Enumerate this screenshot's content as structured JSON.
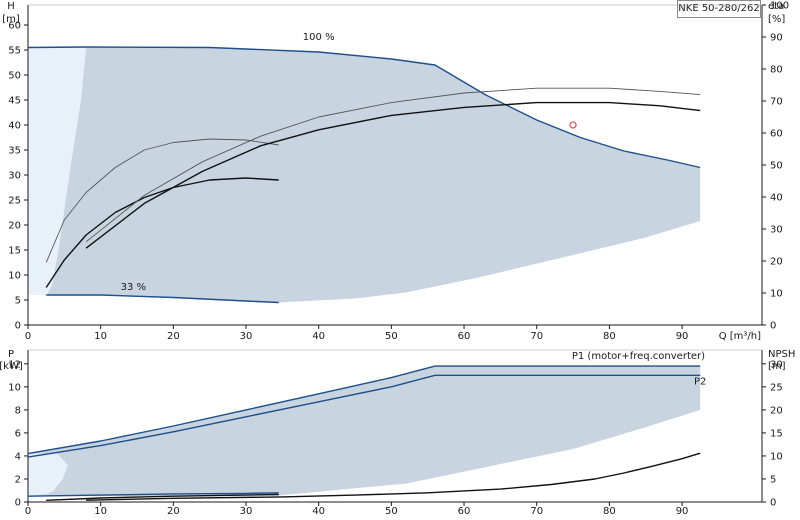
{
  "pump_model": "NKE 50-280/262",
  "colors": {
    "envelope_fill": "#c8d5e0",
    "low_speed_fill": "#e8f1fa",
    "curve_blue": "#1f4e8c",
    "curve_black": "#111111",
    "curve_gray": "#555555",
    "duty_marker": "#e05a5a",
    "axis": "#1a1a1a"
  },
  "chart_data": [
    {
      "type": "line",
      "panel": "head-efficiency",
      "x_axis": {
        "label": "Q [m³/h]",
        "ticks": [
          0,
          10,
          20,
          30,
          40,
          50,
          60,
          70,
          80,
          90
        ],
        "range": [
          0,
          101
        ]
      },
      "y_left": {
        "label_top": "H",
        "label_unit": "[m]",
        "ticks": [
          0,
          5,
          10,
          15,
          20,
          25,
          30,
          35,
          40,
          45,
          50,
          55,
          60
        ],
        "range": [
          0,
          64
        ]
      },
      "y_right": {
        "label_top": "eta",
        "label_unit": "[%]",
        "ticks": [
          0,
          10,
          20,
          30,
          40,
          50,
          60,
          70,
          80,
          90,
          100
        ],
        "range": [
          0,
          100
        ]
      },
      "annotations": [
        {
          "text": "100 %",
          "x": 40,
          "y": 57
        },
        {
          "text": "33 %",
          "x": 14.5,
          "y": 7
        }
      ],
      "envelope": {
        "upper": [
          [
            0,
            55.5
          ],
          [
            8,
            55.6
          ],
          [
            25,
            55.5
          ],
          [
            40,
            54.6
          ],
          [
            50,
            53.2
          ],
          [
            56,
            52
          ],
          [
            63,
            46
          ],
          [
            70,
            41
          ],
          [
            76,
            37.5
          ],
          [
            82,
            34.8
          ],
          [
            88,
            33
          ],
          [
            92.5,
            31.5
          ]
        ],
        "lower": [
          [
            92.5,
            20.8
          ],
          [
            85,
            17.5
          ],
          [
            75,
            14
          ],
          [
            62,
            9.5
          ],
          [
            52,
            6.5
          ],
          [
            45,
            5.3
          ],
          [
            34.5,
            4.5
          ],
          [
            20,
            5.5
          ],
          [
            10,
            6
          ],
          [
            0,
            6
          ]
        ]
      },
      "low_speed_region": [
        [
          0,
          55.5
        ],
        [
          8,
          55.6
        ],
        [
          7.3,
          45
        ],
        [
          6.2,
          35
        ],
        [
          5.2,
          25
        ],
        [
          4.2,
          15
        ],
        [
          3.3,
          8
        ],
        [
          2.6,
          6
        ],
        [
          0,
          6
        ]
      ],
      "series": [
        {
          "name": "",
          "role": "head-100",
          "color": "curve_blue",
          "points": [
            [
              0,
              55.5
            ],
            [
              8,
              55.6
            ],
            [
              25,
              55.5
            ],
            [
              40,
              54.6
            ],
            [
              50,
              53.2
            ],
            [
              56,
              52
            ],
            [
              63,
              46
            ],
            [
              70,
              41
            ],
            [
              76,
              37.5
            ],
            [
              82,
              34.8
            ],
            [
              88,
              33
            ],
            [
              92.5,
              31.5
            ]
          ]
        },
        {
          "name": "",
          "role": "head-33",
          "color": "curve_blue",
          "points": [
            [
              2.5,
              6
            ],
            [
              10,
              6
            ],
            [
              20,
              5.5
            ],
            [
              30,
              4.8
            ],
            [
              34.5,
              4.5
            ]
          ]
        },
        {
          "name": "",
          "role": "head-low-speed",
          "color": "curve_black",
          "points": [
            [
              2.5,
              7.5
            ],
            [
              5,
              13
            ],
            [
              8,
              18
            ],
            [
              12,
              22.5
            ],
            [
              16,
              25.5
            ],
            [
              20,
              27.5
            ],
            [
              25,
              29
            ],
            [
              30,
              29.4
            ],
            [
              34.5,
              29
            ]
          ]
        },
        {
          "name": "",
          "role": "head-low-speed-upper",
          "color": "curve_gray",
          "points": [
            [
              2.5,
              12.5
            ],
            [
              5,
              21
            ],
            [
              8,
              26.5
            ],
            [
              12,
              31.5
            ],
            [
              16,
              35
            ],
            [
              20,
              36.5
            ],
            [
              25,
              37.2
            ],
            [
              30,
              37
            ],
            [
              34.5,
              36
            ]
          ]
        },
        {
          "name": "",
          "role": "eta-100",
          "color": "curve_black",
          "axis": "right",
          "points": [
            [
              8,
              24
            ],
            [
              16,
              38
            ],
            [
              24,
              48
            ],
            [
              32,
              56
            ],
            [
              40,
              61
            ],
            [
              50,
              65.5
            ],
            [
              60,
              68
            ],
            [
              70,
              69.5
            ],
            [
              80,
              69.5
            ],
            [
              87,
              68.5
            ],
            [
              92.5,
              67
            ]
          ]
        },
        {
          "name": "",
          "role": "eta-upper",
          "color": "curve_gray",
          "axis": "right",
          "points": [
            [
              8,
              26
            ],
            [
              16,
              40.5
            ],
            [
              24,
              51
            ],
            [
              32,
              59
            ],
            [
              40,
              65
            ],
            [
              50,
              69.5
            ],
            [
              60,
              72.5
            ],
            [
              70,
              74
            ],
            [
              80,
              74
            ],
            [
              87,
              73
            ],
            [
              92.5,
              72
            ]
          ]
        }
      ],
      "duty_point": {
        "x": 75,
        "y": 40
      }
    },
    {
      "type": "line",
      "panel": "power-npsh",
      "x_axis": {
        "ticks": [
          0,
          10,
          20,
          30,
          40,
          50,
          60,
          70,
          80,
          90
        ],
        "range": [
          0,
          101
        ]
      },
      "y_left": {
        "label_top": "P",
        "label_unit": "[kW]",
        "ticks": [
          0,
          2,
          4,
          6,
          8,
          10,
          12
        ],
        "range": [
          0,
          13.2
        ]
      },
      "y_right": {
        "label_top": "NPSH",
        "label_unit": "[m]",
        "ticks": [
          0,
          5,
          10,
          15,
          20,
          25,
          30
        ],
        "range": [
          0,
          33
        ]
      },
      "annotations": [
        {
          "text": "P1 (motor+freq.converter)",
          "x": 84,
          "y": 12.4
        },
        {
          "text": "P2",
          "x": 92.5,
          "y": 10.2
        }
      ],
      "envelope": {
        "upper": [
          [
            0,
            4.2
          ],
          [
            10,
            5.3
          ],
          [
            20,
            6.6
          ],
          [
            30,
            8
          ],
          [
            40,
            9.4
          ],
          [
            50,
            10.8
          ],
          [
            56,
            11.8
          ],
          [
            70,
            11.8
          ],
          [
            92.5,
            11.8
          ]
        ],
        "lower": [
          [
            92.5,
            8
          ],
          [
            85,
            6.5
          ],
          [
            75,
            4.6
          ],
          [
            62,
            2.9
          ],
          [
            52,
            1.6
          ],
          [
            45,
            1.2
          ],
          [
            35,
            0.6
          ],
          [
            20,
            0.5
          ],
          [
            10,
            0.5
          ],
          [
            0,
            0.5
          ]
        ]
      },
      "low_speed_region": [
        [
          0,
          4.2
        ],
        [
          4,
          4.2
        ],
        [
          5.5,
          3.2
        ],
        [
          4.7,
          1.9
        ],
        [
          3.5,
          1
        ],
        [
          2.7,
          0.7
        ],
        [
          0,
          0.5
        ]
      ],
      "series": [
        {
          "name": "P1 (motor+freq.converter)",
          "role": "p1",
          "color": "curve_blue",
          "points": [
            [
              0,
              4.2
            ],
            [
              10,
              5.3
            ],
            [
              20,
              6.6
            ],
            [
              30,
              8
            ],
            [
              40,
              9.4
            ],
            [
              50,
              10.8
            ],
            [
              56,
              11.8
            ],
            [
              70,
              11.8
            ],
            [
              92.5,
              11.8
            ]
          ]
        },
        {
          "name": "P2",
          "role": "p2",
          "color": "curve_blue",
          "points": [
            [
              0,
              3.9
            ],
            [
              10,
              4.9
            ],
            [
              20,
              6.1
            ],
            [
              30,
              7.4
            ],
            [
              40,
              8.7
            ],
            [
              50,
              10
            ],
            [
              56,
              11
            ],
            [
              70,
              11
            ],
            [
              92.5,
              11
            ]
          ]
        },
        {
          "name": "",
          "role": "p-low-speed-1",
          "color": "curve_blue",
          "points": [
            [
              0,
              0.5
            ],
            [
              10,
              0.6
            ],
            [
              20,
              0.7
            ],
            [
              30,
              0.75
            ],
            [
              34.5,
              0.8
            ]
          ]
        },
        {
          "name": "",
          "role": "p-low-speed-2",
          "color": "curve_black",
          "points": [
            [
              2.5,
              0.15
            ],
            [
              10,
              0.35
            ],
            [
              20,
              0.5
            ],
            [
              30,
              0.6
            ],
            [
              34.5,
              0.65
            ]
          ]
        },
        {
          "name": "",
          "role": "npsh",
          "color": "curve_black",
          "axis": "right",
          "points": [
            [
              8,
              0.4
            ],
            [
              20,
              0.8
            ],
            [
              35,
              1.1
            ],
            [
              45,
              1.5
            ],
            [
              55,
              2
            ],
            [
              65,
              2.8
            ],
            [
              72,
              3.8
            ],
            [
              78,
              5
            ],
            [
              82,
              6.3
            ],
            [
              86,
              7.8
            ],
            [
              90,
              9.4
            ],
            [
              92.5,
              10.6
            ]
          ]
        }
      ]
    }
  ]
}
